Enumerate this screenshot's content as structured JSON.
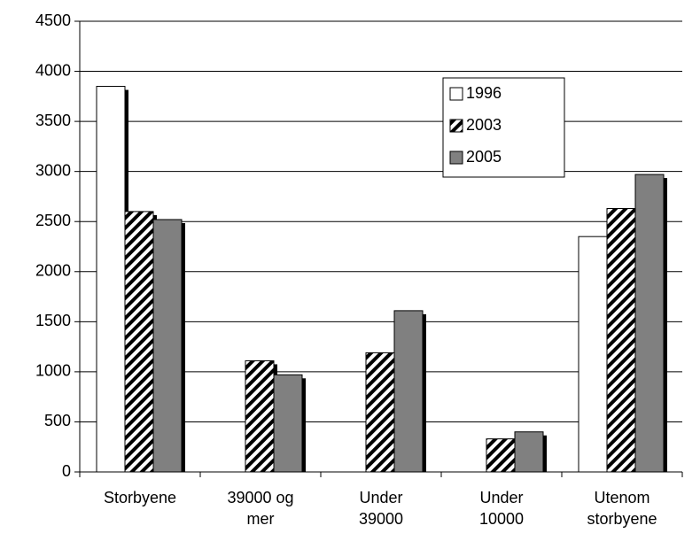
{
  "chart_data": {
    "type": "bar",
    "categories": [
      [
        "Storbyene"
      ],
      [
        "39000 og",
        "mer"
      ],
      [
        "Under",
        "39000"
      ],
      [
        "Under",
        "10000"
      ],
      [
        "Utenom",
        "storbyene"
      ]
    ],
    "series": [
      {
        "name": "1996",
        "color": "#ffffff",
        "values": [
          3850,
          null,
          null,
          null,
          2350
        ]
      },
      {
        "name": "2003",
        "color": "#000000",
        "pattern": "diagonal",
        "values": [
          2600,
          1110,
          1190,
          330,
          2630
        ]
      },
      {
        "name": "2005",
        "color": "#808080",
        "values": [
          2520,
          970,
          1610,
          400,
          2970
        ]
      }
    ],
    "ylim": [
      0,
      4500
    ],
    "yticks": [
      0,
      500,
      1000,
      1500,
      2000,
      2500,
      3000,
      3500,
      4000,
      4500
    ],
    "grid": true,
    "legend": "upper right"
  }
}
